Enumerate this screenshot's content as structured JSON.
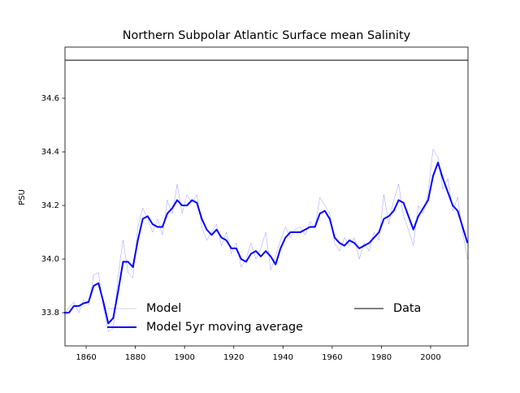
{
  "chart_data": {
    "type": "line",
    "title": "Northern Subpolar Atlantic Surface mean Salinity",
    "ylabel": "PSU",
    "x": [
      1851,
      1853,
      1855,
      1857,
      1859,
      1861,
      1863,
      1865,
      1867,
      1869,
      1871,
      1873,
      1875,
      1877,
      1879,
      1881,
      1883,
      1885,
      1887,
      1889,
      1891,
      1893,
      1895,
      1897,
      1899,
      1901,
      1903,
      1905,
      1907,
      1909,
      1911,
      1913,
      1915,
      1917,
      1919,
      1921,
      1923,
      1925,
      1927,
      1929,
      1931,
      1933,
      1935,
      1937,
      1939,
      1941,
      1943,
      1945,
      1947,
      1949,
      1951,
      1953,
      1955,
      1957,
      1959,
      1961,
      1963,
      1965,
      1967,
      1969,
      1971,
      1973,
      1975,
      1977,
      1979,
      1981,
      1983,
      1985,
      1987,
      1989,
      1991,
      1993,
      1995,
      1997,
      1999,
      2001,
      2003,
      2005,
      2007,
      2009,
      2011,
      2013,
      2015
    ],
    "series": [
      {
        "name": "Model",
        "color": "#0000ff",
        "width": 0.5,
        "opacity": 0.4,
        "values": [
          33.79,
          33.82,
          33.84,
          33.8,
          33.85,
          33.83,
          33.94,
          33.95,
          33.82,
          33.73,
          33.74,
          33.94,
          34.07,
          33.95,
          33.93,
          34.12,
          34.19,
          34.15,
          34.1,
          34.15,
          34.09,
          34.22,
          34.17,
          34.28,
          34.17,
          34.24,
          34.21,
          34.24,
          34.12,
          34.07,
          34.1,
          34.13,
          34.05,
          34.1,
          34.02,
          34.06,
          33.97,
          34.0,
          34.06,
          34.0,
          34.04,
          34.1,
          33.96,
          34.01,
          34.07,
          34.12,
          34.08,
          34.11,
          34.12,
          34.09,
          34.14,
          34.12,
          34.23,
          34.2,
          34.17,
          34.06,
          34.03,
          34.08,
          34.05,
          34.08,
          34.0,
          34.06,
          34.03,
          34.1,
          34.07,
          34.24,
          34.13,
          34.22,
          34.28,
          34.16,
          34.11,
          34.05,
          34.2,
          34.17,
          34.25,
          34.41,
          34.38,
          34.26,
          34.3,
          34.18,
          34.23,
          34.1,
          34.0
        ]
      },
      {
        "name": "Model 5yr moving average",
        "color": "#0000ff",
        "width": 2,
        "opacity": 1,
        "values": [
          33.8,
          33.8,
          33.825,
          33.825,
          33.835,
          33.84,
          33.9,
          33.91,
          33.84,
          33.76,
          33.78,
          33.88,
          33.99,
          33.99,
          33.97,
          34.07,
          34.15,
          34.16,
          34.13,
          34.12,
          34.12,
          34.17,
          34.19,
          34.22,
          34.2,
          34.2,
          34.22,
          34.21,
          34.15,
          34.11,
          34.09,
          34.11,
          34.08,
          34.07,
          34.04,
          34.04,
          34.0,
          33.99,
          34.02,
          34.03,
          34.01,
          34.03,
          34.01,
          33.98,
          34.04,
          34.08,
          34.1,
          34.1,
          34.1,
          34.11,
          34.12,
          34.12,
          34.17,
          34.18,
          34.15,
          34.08,
          34.06,
          34.05,
          34.07,
          34.06,
          34.04,
          34.05,
          34.06,
          34.08,
          34.1,
          34.15,
          34.16,
          34.18,
          34.22,
          34.21,
          34.16,
          34.11,
          34.16,
          34.19,
          34.22,
          34.31,
          34.36,
          34.3,
          34.25,
          34.2,
          34.18,
          34.12,
          34.06
        ]
      }
    ],
    "reference_lines": [
      {
        "name": "Data",
        "value": 34.742,
        "color": "#000000"
      }
    ],
    "xlim": [
      1851.4,
      2015.2
    ],
    "ylim": [
      33.676,
      34.791
    ],
    "xticks": [
      1860,
      1880,
      1900,
      1920,
      1940,
      1960,
      1980,
      2000
    ],
    "yticks": [
      33.8,
      {
        "value": 34.0,
        "label": "34.0"
      },
      34.2,
      34.4,
      34.6
    ]
  }
}
